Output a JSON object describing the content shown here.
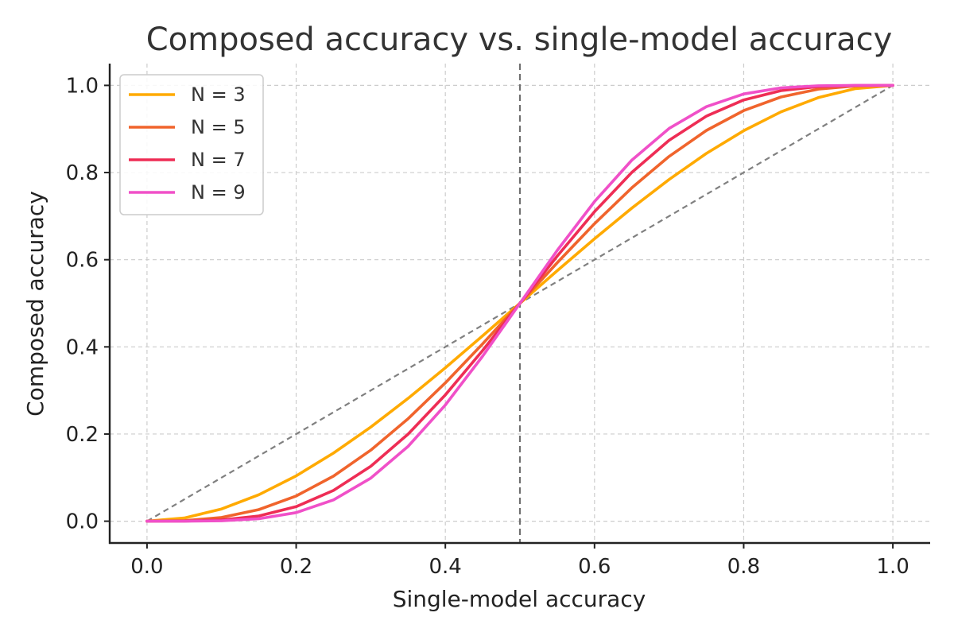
{
  "chart_data": {
    "type": "line",
    "title": "Composed accuracy vs. single-model accuracy",
    "xlabel": "Single-model accuracy",
    "ylabel": "Composed accuracy",
    "xlim": [
      -0.05,
      1.05
    ],
    "ylim": [
      -0.05,
      1.05
    ],
    "xticks": [
      "0.0",
      "0.2",
      "0.4",
      "0.6",
      "0.8",
      "1.0"
    ],
    "yticks": [
      "0.0",
      "0.2",
      "0.4",
      "0.6",
      "0.8",
      "1.0"
    ],
    "grid": true,
    "legend_position": "upper-left",
    "x": [
      0.0,
      0.05,
      0.1,
      0.15,
      0.2,
      0.25,
      0.3,
      0.35,
      0.4,
      0.45,
      0.5,
      0.55,
      0.6,
      0.65,
      0.7,
      0.75,
      0.8,
      0.85,
      0.9,
      0.95,
      1.0
    ],
    "series": [
      {
        "name": "N = 3",
        "color": "#FFAA00",
        "values": [
          0.0,
          0.0073,
          0.028,
          0.0608,
          0.104,
          0.1563,
          0.216,
          0.2818,
          0.352,
          0.4253,
          0.5,
          0.5748,
          0.648,
          0.7183,
          0.784,
          0.8438,
          0.896,
          0.9393,
          0.972,
          0.9928,
          1.0
        ]
      },
      {
        "name": "N = 5",
        "color": "#F0642C",
        "values": [
          0.0,
          0.0012,
          0.0086,
          0.0266,
          0.0579,
          0.1035,
          0.1631,
          0.2352,
          0.3174,
          0.4069,
          0.5,
          0.5931,
          0.6826,
          0.7648,
          0.8369,
          0.8965,
          0.9421,
          0.9734,
          0.9914,
          0.9988,
          1.0
        ]
      },
      {
        "name": "N = 7",
        "color": "#EE2D55",
        "values": [
          0.0,
          0.0002,
          0.0027,
          0.0121,
          0.0333,
          0.0706,
          0.126,
          0.1998,
          0.2898,
          0.3917,
          0.5,
          0.6083,
          0.7102,
          0.8002,
          0.874,
          0.9294,
          0.9667,
          0.9879,
          0.9973,
          0.9998,
          1.0
        ]
      },
      {
        "name": "N = 9",
        "color": "#F050C8",
        "values": [
          0.0,
          0.0,
          0.0009,
          0.0056,
          0.0196,
          0.0489,
          0.0988,
          0.1717,
          0.2666,
          0.3786,
          0.5,
          0.6214,
          0.7334,
          0.8283,
          0.9012,
          0.9511,
          0.9804,
          0.9944,
          0.9991,
          1.0,
          1.0
        ]
      }
    ],
    "reference_lines": [
      {
        "kind": "diagonal",
        "from": [
          0,
          0
        ],
        "to": [
          1,
          1
        ],
        "color": "#808080",
        "style": "dashed"
      },
      {
        "kind": "vertical",
        "x": 0.5,
        "color": "#707070",
        "style": "dashed"
      }
    ]
  }
}
